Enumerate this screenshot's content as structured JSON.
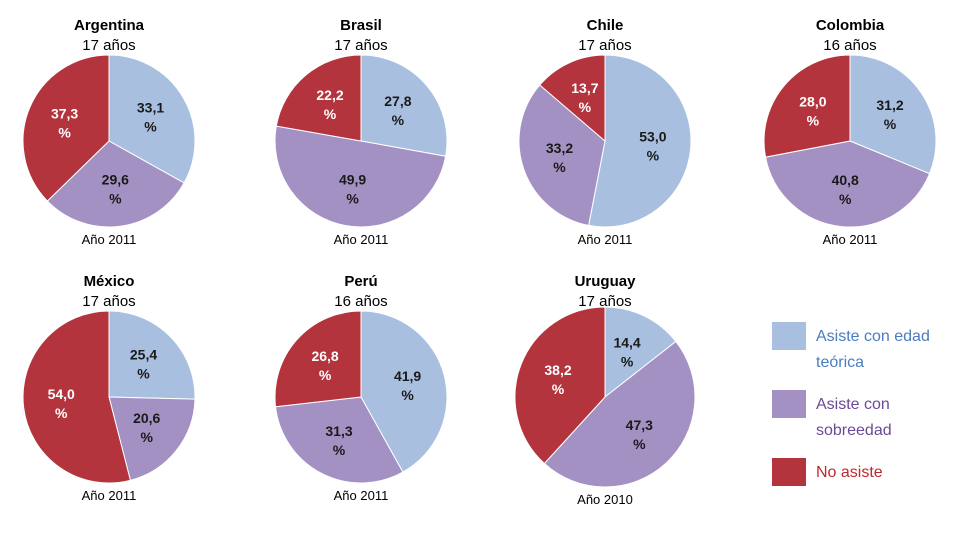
{
  "colors": {
    "asiste_edad": "#a9bfe0",
    "asiste_sobreedad": "#a491c3",
    "no_asiste": "#b3343c",
    "label_text": "#1a1a1a",
    "label_text_dark": "#ffffff"
  },
  "legend": [
    {
      "label": "Asiste con edad teórica",
      "color": "#a9bfe0",
      "text_color": "#4a7cc0"
    },
    {
      "label": "Asiste con sobreedad",
      "color": "#a491c3",
      "text_color": "#6b4a95"
    },
    {
      "label": "No asiste",
      "color": "#b3343c",
      "text_color": "#c0282f"
    }
  ],
  "chart_data": [
    {
      "type": "pie",
      "title": "Argentina",
      "subtitle": "17 años",
      "caption": "Año 2011",
      "slices": [
        {
          "category": "Asiste con edad teórica",
          "value": 33.1,
          "label": "33,1\n%"
        },
        {
          "category": "Asiste con sobreedad",
          "value": 29.6,
          "label": "29,6\n%"
        },
        {
          "category": "No asiste",
          "value": 37.3,
          "label": "37,3\n%"
        }
      ]
    },
    {
      "type": "pie",
      "title": "Brasil",
      "subtitle": "17 años",
      "caption": "Año 2011",
      "slices": [
        {
          "category": "Asiste con edad teórica",
          "value": 27.8,
          "label": "27,8\n%"
        },
        {
          "category": "Asiste con sobreedad",
          "value": 49.9,
          "label": "49,9\n%"
        },
        {
          "category": "No asiste",
          "value": 22.2,
          "label": "22,2\n%"
        }
      ]
    },
    {
      "type": "pie",
      "title": "Chile",
      "subtitle": "17 años",
      "caption": "Año 2011",
      "slices": [
        {
          "category": "Asiste con edad teórica",
          "value": 53.0,
          "label": "53,0\n%"
        },
        {
          "category": "Asiste con sobreedad",
          "value": 33.2,
          "label": "33,2\n%"
        },
        {
          "category": "No asiste",
          "value": 13.7,
          "label": "13,7\n%"
        }
      ]
    },
    {
      "type": "pie",
      "title": "Colombia",
      "subtitle": "16 años",
      "caption": "Año 2011",
      "slices": [
        {
          "category": "Asiste con edad teórica",
          "value": 31.2,
          "label": "31,2\n%"
        },
        {
          "category": "Asiste con sobreedad",
          "value": 40.8,
          "label": "40,8\n%"
        },
        {
          "category": "No asiste",
          "value": 28.0,
          "label": "28,0\n%"
        }
      ]
    },
    {
      "type": "pie",
      "title": "México",
      "subtitle": "17 años",
      "caption": "Año 2011",
      "slices": [
        {
          "category": "Asiste con edad teórica",
          "value": 25.4,
          "label": "25,4\n%"
        },
        {
          "category": "Asiste con sobreedad",
          "value": 20.6,
          "label": "20,6\n%"
        },
        {
          "category": "No asiste",
          "value": 54.0,
          "label": "54,0\n%"
        }
      ]
    },
    {
      "type": "pie",
      "title": "Perú",
      "subtitle": "16 años",
      "caption": "Año 2011",
      "slices": [
        {
          "category": "Asiste con edad teórica",
          "value": 41.9,
          "label": "41,9\n%"
        },
        {
          "category": "Asiste con sobreedad",
          "value": 31.3,
          "label": "31,3\n%"
        },
        {
          "category": "No asiste",
          "value": 26.8,
          "label": "26,8\n%"
        }
      ]
    },
    {
      "type": "pie",
      "title": "Uruguay",
      "subtitle": "17 años",
      "caption": "Año 2010",
      "slices": [
        {
          "category": "Asiste con edad teórica",
          "value": 14.4,
          "label": "14,4\n%"
        },
        {
          "category": "Asiste con sobreedad",
          "value": 47.3,
          "label": "47,3\n%"
        },
        {
          "category": "No asiste",
          "value": 38.2,
          "label": "38,2\n%"
        }
      ]
    }
  ]
}
